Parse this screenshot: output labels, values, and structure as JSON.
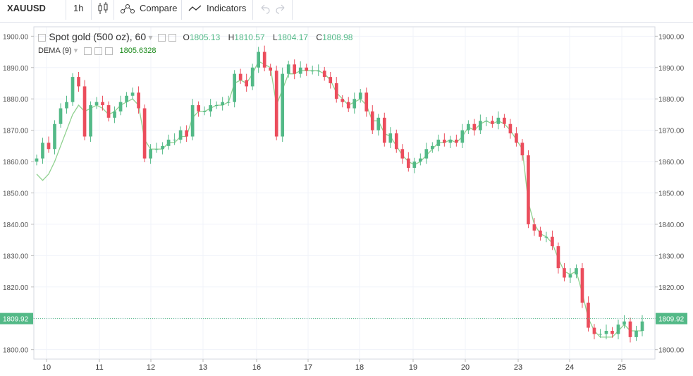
{
  "toolbar": {
    "symbol": "XAUUSD",
    "interval": "1h",
    "compare_label": "Compare",
    "indicators_label": "Indicators"
  },
  "legend": {
    "title": "Spot gold (500 oz), 60",
    "o_label": "O",
    "o_value": "1805.13",
    "h_label": "H",
    "h_value": "1810.57",
    "l_label": "L",
    "l_value": "1804.17",
    "c_label": "C",
    "c_value": "1808.98",
    "indicator_label": "DEMA (9)",
    "indicator_value": "1805.6328"
  },
  "colors": {
    "up": "#53b987",
    "down": "#eb4d5c",
    "dema": "#8fd18f",
    "grid": "#f0f3fa",
    "last_price_bg": "#53b987"
  },
  "chart_data": {
    "type": "candlestick",
    "title": "Spot gold (500 oz), 60",
    "ylim": [
      1797,
      1903
    ],
    "y_ticks": [
      1800,
      1810,
      1820,
      1830,
      1840,
      1850,
      1860,
      1870,
      1880,
      1890,
      1900
    ],
    "y_tick_labels": [
      "1800.00",
      "1810.00",
      "1820.00",
      "1830.00",
      "1840.00",
      "1850.00",
      "1860.00",
      "1870.00",
      "1880.00",
      "1890.00",
      "1900.00"
    ],
    "x_labels": [
      "10",
      "11",
      "12",
      "13",
      "16",
      "17",
      "18",
      "19",
      "20",
      "23",
      "24",
      "25"
    ],
    "last_price": 1809.92,
    "last_price_label": "1809.92",
    "grid": true,
    "close_series": [
      1861,
      1866,
      1864,
      1872,
      1877,
      1879,
      1887,
      1884,
      1868,
      1878,
      1879,
      1878,
      1874,
      1876,
      1879,
      1881,
      1882,
      1877,
      1861,
      1864,
      1864,
      1865,
      1867,
      1867,
      1870,
      1868,
      1878,
      1876,
      1876,
      1878,
      1878,
      1879,
      1879,
      1888,
      1886,
      1884,
      1890,
      1895,
      1890,
      1889,
      1868,
      1888,
      1891,
      1888,
      1890,
      1889,
      1889,
      1889,
      1887,
      1885,
      1880,
      1879,
      1877,
      1880,
      1882,
      1876,
      1870,
      1874,
      1866,
      1869,
      1864,
      1861,
      1858,
      1860,
      1861,
      1864,
      1865,
      1867,
      1866,
      1867,
      1866,
      1870,
      1872,
      1870,
      1873,
      1873,
      1872,
      1874,
      1872,
      1869,
      1866,
      1862,
      1840,
      1838,
      1836,
      1836,
      1833,
      1826,
      1823,
      1824,
      1826,
      1815,
      1807,
      1805,
      1805,
      1806,
      1805,
      1808,
      1809,
      1804,
      1806,
      1809
    ],
    "dema_series": [
      1856,
      1854,
      1856,
      1860,
      1865,
      1870,
      1875,
      1878,
      1876,
      1877,
      1878,
      1877,
      1875,
      1876,
      1878,
      1879,
      1880,
      1878,
      1867,
      1864,
      1864,
      1864,
      1866,
      1866,
      1868,
      1868,
      1874,
      1876,
      1876,
      1877,
      1878,
      1878,
      1879,
      1885,
      1886,
      1885,
      1888,
      1892,
      1891,
      1890,
      1878,
      1883,
      1888,
      1888,
      1889,
      1889,
      1889,
      1889,
      1888,
      1886,
      1882,
      1880,
      1878,
      1879,
      1880,
      1878,
      1873,
      1873,
      1869,
      1868,
      1865,
      1862,
      1860,
      1859,
      1860,
      1862,
      1864,
      1866,
      1866,
      1867,
      1866,
      1868,
      1871,
      1870,
      1872,
      1873,
      1872,
      1873,
      1872,
      1870,
      1867,
      1864,
      1847,
      1840,
      1837,
      1836,
      1834,
      1829,
      1825,
      1824,
      1825,
      1818,
      1810,
      1806,
      1804,
      1804,
      1804,
      1806,
      1808,
      1806,
      1806,
      1806
    ]
  }
}
